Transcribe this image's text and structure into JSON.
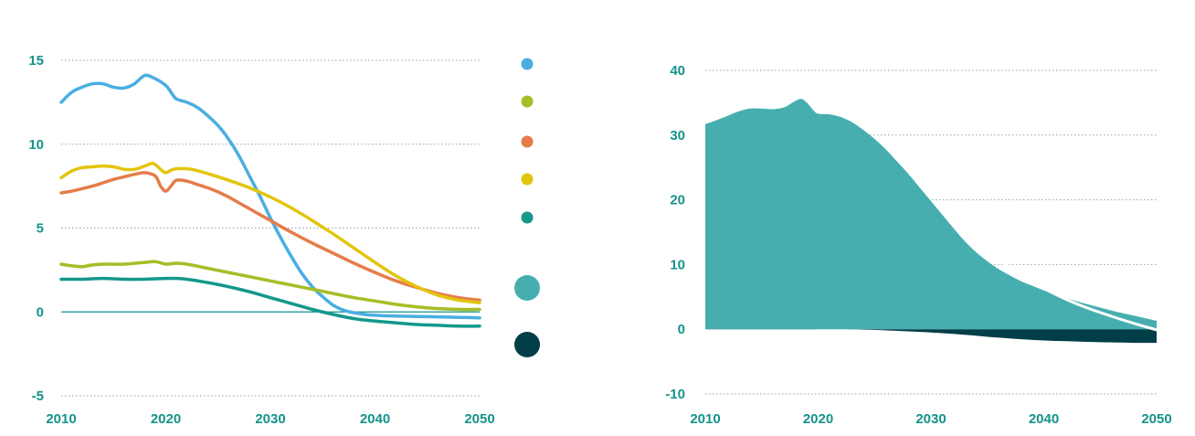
{
  "chart_data": [
    {
      "type": "line",
      "x_ticks": [
        "2010",
        "2020",
        "2030",
        "2040",
        "2050"
      ],
      "y_ticks": [
        "-5",
        "0",
        "5",
        "10",
        "15"
      ],
      "xlim": [
        2010,
        2050
      ],
      "ylim": [
        -5,
        15
      ],
      "grid": true,
      "legend_position": "right",
      "series": [
        {
          "color": "#4aaee2",
          "points": [
            [
              2010,
              12.5
            ],
            [
              2011,
              13.1
            ],
            [
              2012,
              13.4
            ],
            [
              2013,
              13.6
            ],
            [
              2014,
              13.6
            ],
            [
              2015,
              13.4
            ],
            [
              2016,
              13.35
            ],
            [
              2017,
              13.6
            ],
            [
              2018,
              14.1
            ],
            [
              2019,
              13.9
            ],
            [
              2020,
              13.5
            ],
            [
              2020.5,
              13.1
            ],
            [
              2021,
              12.7
            ],
            [
              2022,
              12.5
            ],
            [
              2023,
              12.2
            ],
            [
              2024,
              11.7
            ],
            [
              2025,
              11.1
            ],
            [
              2026,
              10.3
            ],
            [
              2027,
              9.3
            ],
            [
              2028,
              8.1
            ],
            [
              2029,
              6.9
            ],
            [
              2030,
              5.6
            ],
            [
              2031,
              4.4
            ],
            [
              2032,
              3.3
            ],
            [
              2033,
              2.3
            ],
            [
              2034,
              1.5
            ],
            [
              2035,
              0.9
            ],
            [
              2036,
              0.4
            ],
            [
              2037,
              0.1
            ],
            [
              2038,
              -0.05
            ],
            [
              2039,
              -0.15
            ],
            [
              2040,
              -0.2
            ],
            [
              2042,
              -0.25
            ],
            [
              2045,
              -0.28
            ],
            [
              2050,
              -0.35
            ]
          ]
        },
        {
          "color": "#a6bd25",
          "points": [
            [
              2010,
              2.85
            ],
            [
              2011,
              2.75
            ],
            [
              2012,
              2.7
            ],
            [
              2013,
              2.8
            ],
            [
              2014,
              2.85
            ],
            [
              2016,
              2.85
            ],
            [
              2018,
              2.95
            ],
            [
              2019,
              3.0
            ],
            [
              2020,
              2.85
            ],
            [
              2021,
              2.9
            ],
            [
              2022,
              2.85
            ],
            [
              2024,
              2.6
            ],
            [
              2026,
              2.35
            ],
            [
              2028,
              2.1
            ],
            [
              2030,
              1.85
            ],
            [
              2032,
              1.6
            ],
            [
              2034,
              1.35
            ],
            [
              2036,
              1.1
            ],
            [
              2038,
              0.85
            ],
            [
              2040,
              0.65
            ],
            [
              2042,
              0.45
            ],
            [
              2044,
              0.3
            ],
            [
              2046,
              0.2
            ],
            [
              2048,
              0.15
            ],
            [
              2050,
              0.15
            ]
          ]
        },
        {
          "color": "#e57d4a",
          "points": [
            [
              2010,
              7.1
            ],
            [
              2011,
              7.2
            ],
            [
              2012,
              7.35
            ],
            [
              2013,
              7.5
            ],
            [
              2014,
              7.7
            ],
            [
              2015,
              7.9
            ],
            [
              2016,
              8.05
            ],
            [
              2017,
              8.2
            ],
            [
              2018,
              8.3
            ],
            [
              2019,
              8.1
            ],
            [
              2019.5,
              7.5
            ],
            [
              2020,
              7.2
            ],
            [
              2020.5,
              7.5
            ],
            [
              2021,
              7.85
            ],
            [
              2022,
              7.8
            ],
            [
              2023,
              7.6
            ],
            [
              2024,
              7.4
            ],
            [
              2025,
              7.15
            ],
            [
              2026,
              6.85
            ],
            [
              2027,
              6.5
            ],
            [
              2028,
              6.15
            ],
            [
              2029,
              5.8
            ],
            [
              2030,
              5.45
            ],
            [
              2032,
              4.75
            ],
            [
              2034,
              4.1
            ],
            [
              2036,
              3.5
            ],
            [
              2038,
              2.9
            ],
            [
              2040,
              2.35
            ],
            [
              2042,
              1.85
            ],
            [
              2044,
              1.45
            ],
            [
              2046,
              1.1
            ],
            [
              2048,
              0.85
            ],
            [
              2050,
              0.7
            ]
          ]
        },
        {
          "color": "#e2c50e",
          "points": [
            [
              2010,
              8.0
            ],
            [
              2011,
              8.4
            ],
            [
              2012,
              8.6
            ],
            [
              2013,
              8.65
            ],
            [
              2014,
              8.7
            ],
            [
              2015,
              8.65
            ],
            [
              2016,
              8.5
            ],
            [
              2017,
              8.5
            ],
            [
              2018,
              8.7
            ],
            [
              2018.8,
              8.85
            ],
            [
              2019.5,
              8.5
            ],
            [
              2020,
              8.3
            ],
            [
              2020.7,
              8.5
            ],
            [
              2021.5,
              8.55
            ],
            [
              2022.5,
              8.5
            ],
            [
              2024,
              8.25
            ],
            [
              2026,
              7.85
            ],
            [
              2028,
              7.4
            ],
            [
              2030,
              6.85
            ],
            [
              2032,
              6.2
            ],
            [
              2034,
              5.45
            ],
            [
              2036,
              4.65
            ],
            [
              2038,
              3.8
            ],
            [
              2040,
              2.95
            ],
            [
              2042,
              2.15
            ],
            [
              2044,
              1.5
            ],
            [
              2046,
              1.0
            ],
            [
              2048,
              0.7
            ],
            [
              2050,
              0.55
            ]
          ]
        },
        {
          "color": "#14988b",
          "points": [
            [
              2010,
              1.95
            ],
            [
              2012,
              1.95
            ],
            [
              2014,
              2.0
            ],
            [
              2016,
              1.95
            ],
            [
              2018,
              1.95
            ],
            [
              2020,
              2.0
            ],
            [
              2021,
              2.0
            ],
            [
              2022,
              1.95
            ],
            [
              2024,
              1.75
            ],
            [
              2026,
              1.5
            ],
            [
              2028,
              1.2
            ],
            [
              2030,
              0.85
            ],
            [
              2032,
              0.5
            ],
            [
              2034,
              0.15
            ],
            [
              2036,
              -0.15
            ],
            [
              2038,
              -0.4
            ],
            [
              2040,
              -0.55
            ],
            [
              2042,
              -0.65
            ],
            [
              2044,
              -0.75
            ],
            [
              2046,
              -0.8
            ],
            [
              2048,
              -0.85
            ],
            [
              2050,
              -0.85
            ]
          ]
        }
      ],
      "legend_markers": [
        {
          "color": "#4aaee2",
          "size": "small"
        },
        {
          "color": "#a6bd25",
          "size": "small"
        },
        {
          "color": "#e57d4a",
          "size": "small"
        },
        {
          "color": "#e2c50e",
          "size": "small"
        },
        {
          "color": "#14988b",
          "size": "small"
        },
        {
          "color": "#47aeb0",
          "size": "large"
        },
        {
          "color": "#013e48",
          "size": "large"
        }
      ]
    },
    {
      "type": "area",
      "x_ticks": [
        "2010",
        "2020",
        "2030",
        "2040",
        "2050"
      ],
      "y_ticks": [
        "-10",
        "0",
        "10",
        "20",
        "30",
        "40"
      ],
      "xlim": [
        2010,
        2050
      ],
      "ylim": [
        -10,
        40
      ],
      "grid": true,
      "positive_area": {
        "color": "#47aeb0",
        "points": [
          [
            2010,
            31.7
          ],
          [
            2011,
            32.3
          ],
          [
            2012,
            33.0
          ],
          [
            2013,
            33.7
          ],
          [
            2014,
            34.1
          ],
          [
            2015,
            34.1
          ],
          [
            2016,
            34.0
          ],
          [
            2017,
            34.3
          ],
          [
            2017.8,
            35.1
          ],
          [
            2018.5,
            35.6
          ],
          [
            2019,
            35.0
          ],
          [
            2019.6,
            33.8
          ],
          [
            2020,
            33.3
          ],
          [
            2021,
            33.2
          ],
          [
            2022,
            32.8
          ],
          [
            2023,
            32.0
          ],
          [
            2024,
            30.8
          ],
          [
            2025,
            29.4
          ],
          [
            2026,
            27.8
          ],
          [
            2027,
            25.9
          ],
          [
            2028,
            24.0
          ],
          [
            2029,
            21.9
          ],
          [
            2030,
            19.8
          ],
          [
            2031,
            17.7
          ],
          [
            2032,
            15.6
          ],
          [
            2033,
            13.6
          ],
          [
            2034,
            11.9
          ],
          [
            2035,
            10.5
          ],
          [
            2036,
            9.3
          ],
          [
            2037,
            8.3
          ],
          [
            2038,
            7.4
          ],
          [
            2039,
            6.7
          ],
          [
            2040,
            6.0
          ],
          [
            2042,
            4.8
          ],
          [
            2044,
            3.8
          ],
          [
            2046,
            2.9
          ],
          [
            2048,
            2.1
          ],
          [
            2050,
            1.3
          ]
        ]
      },
      "negative_area": {
        "color": "#013e48",
        "points": [
          [
            2010,
            0
          ],
          [
            2020,
            0
          ],
          [
            2024,
            -0.05
          ],
          [
            2027,
            -0.25
          ],
          [
            2030,
            -0.5
          ],
          [
            2033,
            -0.85
          ],
          [
            2036,
            -1.3
          ],
          [
            2039,
            -1.65
          ],
          [
            2042,
            -1.85
          ],
          [
            2045,
            -2.0
          ],
          [
            2048,
            -2.1
          ],
          [
            2050,
            -2.1
          ]
        ]
      },
      "net_line": {
        "color": "#ffffff",
        "points": [
          [
            2032.2,
            17.1
          ],
          [
            2033,
            15.7
          ],
          [
            2034,
            14.0
          ],
          [
            2035,
            12.4
          ],
          [
            2036,
            10.9
          ],
          [
            2037,
            9.6
          ],
          [
            2038,
            8.4
          ],
          [
            2039,
            7.3
          ],
          [
            2040,
            6.3
          ],
          [
            2042,
            4.6
          ],
          [
            2044,
            3.2
          ],
          [
            2046,
            2.0
          ],
          [
            2048,
            0.9
          ],
          [
            2050,
            -0.1
          ]
        ]
      }
    }
  ]
}
